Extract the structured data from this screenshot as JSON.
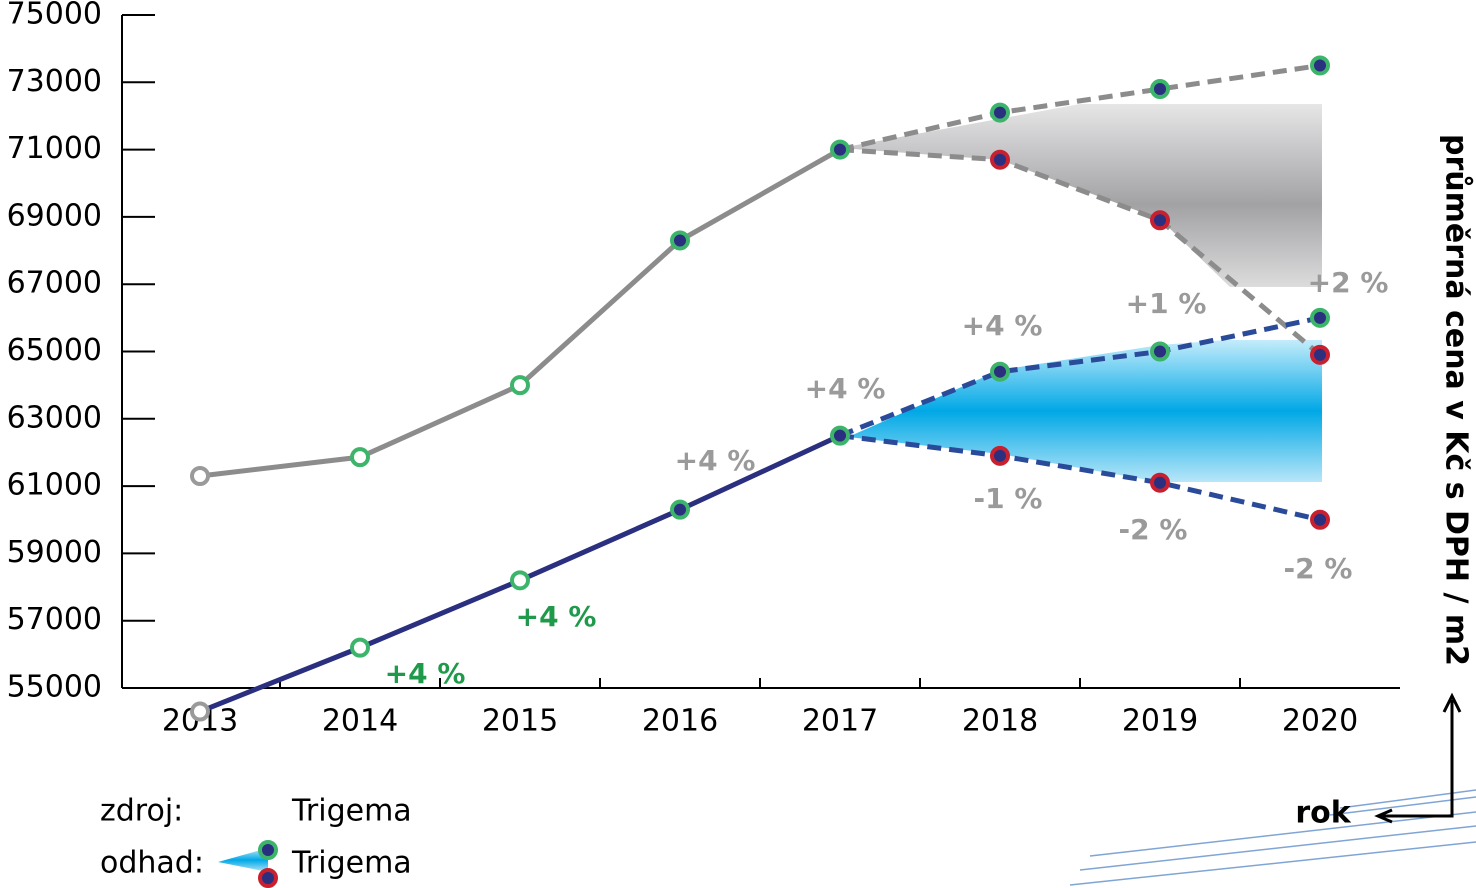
{
  "chart_data": {
    "type": "line",
    "x": [
      "2013",
      "2014",
      "2015",
      "2016",
      "2017",
      "2018",
      "2019",
      "2020"
    ],
    "ylim": [
      55000,
      75000
    ],
    "yticks": [
      55000,
      57000,
      59000,
      61000,
      63000,
      65000,
      67000,
      69000,
      71000,
      73000,
      75000
    ],
    "y_axis_label": "průměrná cena v Kč s DPH / m2",
    "x_axis_label": "rok",
    "series": [
      {
        "color": "#8c8c8c",
        "dashed": false,
        "values": [
          61300,
          61860,
          64000,
          68300,
          71000,
          null,
          null,
          null
        ]
      },
      {
        "color": "#8c8c8c",
        "dashed": true,
        "marker_color": "#3cb56b",
        "values": [
          null,
          null,
          null,
          null,
          71000,
          72100,
          72800,
          73500
        ]
      },
      {
        "color": "#8c8c8c",
        "dashed": true,
        "marker_color": "#c8202f",
        "values": [
          null,
          null,
          null,
          null,
          71000,
          70700,
          68900,
          64900
        ]
      },
      {
        "color": "#2a2f7f",
        "dashed": false,
        "values": [
          54300,
          56200,
          58200,
          60300,
          62500,
          null,
          null,
          null
        ]
      },
      {
        "color": "#2a4a9a",
        "dashed": true,
        "marker_color": "#3cb56b",
        "values": [
          null,
          null,
          null,
          null,
          62500,
          64400,
          65000,
          66000
        ]
      },
      {
        "color": "#2a4a9a",
        "dashed": true,
        "marker_color": "#c8202f",
        "values": [
          null,
          null,
          null,
          null,
          62500,
          61900,
          61100,
          60000
        ]
      }
    ],
    "annotations": [
      {
        "text": "+4 %",
        "color": "#1f9a4a"
      },
      {
        "text": "+4 %",
        "color": "#1f9a4a"
      },
      {
        "text": "+4 %",
        "color": "#9a9a9a"
      },
      {
        "text": "+4 %",
        "color": "#9a9a9a"
      },
      {
        "text": "+4 %",
        "color": "#9a9a9a"
      },
      {
        "text": "+1 %",
        "color": "#9a9a9a"
      },
      {
        "text": "+2 %",
        "color": "#9a9a9a"
      },
      {
        "text": "-1 %",
        "color": "#9a9a9a"
      },
      {
        "text": "-2 %",
        "color": "#9a9a9a"
      },
      {
        "text": "-2 %",
        "color": "#9a9a9a"
      }
    ],
    "legend": {
      "source_label": "zdroj:",
      "source": "Trigema",
      "estimate_label": "odhad:",
      "estimate": "Trigema"
    }
  }
}
